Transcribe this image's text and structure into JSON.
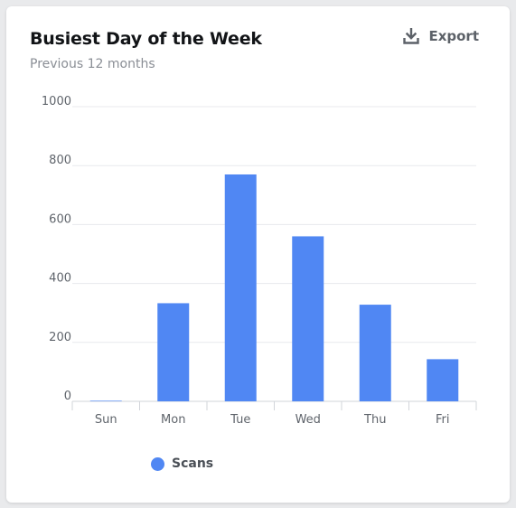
{
  "card": {
    "title": "Busiest Day of the Week",
    "subtitle": "Previous 12 months",
    "export_label": "Export",
    "export_icon": "download-icon"
  },
  "colors": {
    "bar": "#5087f3",
    "grid": "#e8eaed",
    "axis": "#d2d5da",
    "tick_text": "#5f646b"
  },
  "chart_data": {
    "type": "bar",
    "categories": [
      "Sun",
      "Mon",
      "Tue",
      "Wed",
      "Thu",
      "Fri"
    ],
    "series": [
      {
        "name": "Scans",
        "values": [
          2,
          333,
          770,
          560,
          328,
          143
        ]
      }
    ],
    "ylim": [
      0,
      1000
    ],
    "yticks": [
      0,
      200,
      400,
      600,
      800,
      1000
    ],
    "grid": true,
    "legend": "bottom-left"
  }
}
